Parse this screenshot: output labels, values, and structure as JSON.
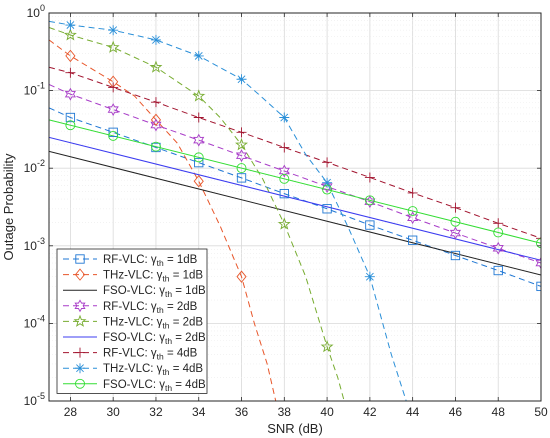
{
  "chart_data": {
    "type": "line",
    "title": "",
    "xlabel": "SNR (dB)",
    "ylabel": "Outage Probability",
    "x_scale": "linear",
    "y_scale": "log",
    "xlim": [
      27,
      50
    ],
    "ylim": [
      1e-05,
      1
    ],
    "grid": true,
    "legend_position": "bottom-left",
    "x_ticks": [
      28,
      30,
      32,
      34,
      36,
      38,
      40,
      42,
      44,
      46,
      48,
      50
    ],
    "y_ticks": [
      {
        "value": 1e-05,
        "base": "10",
        "exp": "-5"
      },
      {
        "value": 0.0001,
        "base": "10",
        "exp": "-4"
      },
      {
        "value": 0.001,
        "base": "10",
        "exp": "-3"
      },
      {
        "value": 0.01,
        "base": "10",
        "exp": "-2"
      },
      {
        "value": 0.1,
        "base": "10",
        "exp": "-1"
      },
      {
        "value": 1,
        "base": "10",
        "exp": "0"
      }
    ],
    "series": [
      {
        "name_base": "RF-VLC: ",
        "name_value": " = 1dB",
        "gamma_sub": "th",
        "color": "#1f77d4",
        "dash": "6,4",
        "marker": "square",
        "x": [
          27,
          28,
          30,
          32,
          34,
          36,
          38,
          40,
          42,
          44,
          46,
          48,
          50
        ],
        "y": [
          0.06,
          0.045,
          0.029,
          0.0185,
          0.0118,
          0.0075,
          0.0047,
          0.003,
          0.00185,
          0.00118,
          0.00075,
          0.00048,
          0.0003
        ],
        "marker_x": [
          28,
          30,
          32,
          34,
          36,
          38,
          40,
          42,
          44,
          46,
          48,
          50
        ]
      },
      {
        "name_base": "THz-VLC: ",
        "name_value": " = 1dB",
        "gamma_sub": "th",
        "color": "#e8562a",
        "dash": "6,4",
        "marker": "diamond",
        "x": [
          27,
          28,
          30,
          31,
          32,
          33,
          34,
          35,
          36,
          36.6,
          37.2,
          37.6
        ],
        "y": [
          0.45,
          0.28,
          0.13,
          0.085,
          0.042,
          0.021,
          0.0068,
          0.0018,
          0.0004,
          0.0001,
          3e-05,
          1e-05
        ],
        "marker_x": [
          28,
          30,
          32,
          34,
          36
        ]
      },
      {
        "name_base": "FSO-VLC: ",
        "name_value": " = 1dB",
        "gamma_sub": "th",
        "color": "#222222",
        "dash": "",
        "marker": "none",
        "x": [
          27,
          50
        ],
        "y": [
          0.0165,
          0.00042
        ],
        "marker_x": []
      },
      {
        "name_base": "RF-VLC: ",
        "name_value": " = 2dB",
        "gamma_sub": "th",
        "color": "#a83cc8",
        "dash": "6,4",
        "marker": "hexagram",
        "x": [
          27,
          28,
          30,
          32,
          34,
          36,
          38,
          40,
          42,
          44,
          46,
          48,
          50
        ],
        "y": [
          0.12,
          0.09,
          0.057,
          0.036,
          0.023,
          0.0145,
          0.0092,
          0.0058,
          0.0037,
          0.0023,
          0.00146,
          0.00093,
          0.0006
        ],
        "marker_x": [
          28,
          30,
          32,
          34,
          36,
          38,
          40,
          42,
          44,
          46,
          48,
          50
        ]
      },
      {
        "name_base": "THz-VLC: ",
        "name_value": " = 2dB",
        "gamma_sub": "th",
        "color": "#77ac30",
        "dash": "6,4",
        "marker": "star",
        "x": [
          27,
          28,
          30,
          32,
          34,
          35,
          36,
          37,
          38,
          39,
          40,
          40.5,
          40.8
        ],
        "y": [
          0.65,
          0.52,
          0.36,
          0.2,
          0.085,
          0.045,
          0.02,
          0.0072,
          0.0019,
          0.0004,
          5e-05,
          2e-05,
          1e-05
        ],
        "marker_x": [
          28,
          30,
          32,
          34,
          36,
          38,
          40
        ]
      },
      {
        "name_base": "FSO-VLC: ",
        "name_value": " = 2dB",
        "gamma_sub": "th",
        "color": "#3c3cf0",
        "dash": "",
        "marker": "none",
        "x": [
          27,
          50
        ],
        "y": [
          0.025,
          0.00065
        ],
        "marker_x": []
      },
      {
        "name_base": "RF-VLC: ",
        "name_value": " = 4dB",
        "gamma_sub": "th",
        "color": "#a2142f",
        "dash": "6,4",
        "marker": "plus",
        "x": [
          27,
          28,
          30,
          32,
          34,
          36,
          38,
          40,
          42,
          44,
          46,
          48,
          50
        ],
        "y": [
          0.2,
          0.17,
          0.11,
          0.071,
          0.045,
          0.029,
          0.0185,
          0.0119,
          0.0076,
          0.0048,
          0.0031,
          0.00195,
          0.00125
        ],
        "marker_x": [
          28,
          30,
          32,
          34,
          36,
          38,
          40,
          42,
          44,
          46,
          48,
          50
        ]
      },
      {
        "name_base": "THz-VLC: ",
        "name_value": " = 4dB",
        "gamma_sub": "th",
        "color": "#2a8fd8",
        "dash": "6,4",
        "marker": "asterisk",
        "x": [
          27,
          28,
          30,
          32,
          34,
          36,
          37,
          38,
          39,
          40,
          41,
          42,
          43,
          43.7
        ],
        "y": [
          0.78,
          0.7,
          0.6,
          0.45,
          0.28,
          0.14,
          0.08,
          0.045,
          0.015,
          0.0065,
          0.0017,
          0.0004,
          4e-05,
          1e-05
        ],
        "marker_x": [
          28,
          30,
          32,
          34,
          36,
          38,
          40,
          42
        ]
      },
      {
        "name_base": "FSO-VLC: ",
        "name_value": " = 4dB",
        "gamma_sub": "th",
        "color": "#33dd33",
        "dash": "",
        "marker": "circle",
        "x": [
          27,
          50
        ],
        "y": [
          0.042,
          0.00108
        ],
        "marker_x": [
          28,
          30,
          32,
          34,
          36,
          38,
          40,
          42,
          44,
          46,
          48,
          50
        ]
      }
    ]
  }
}
